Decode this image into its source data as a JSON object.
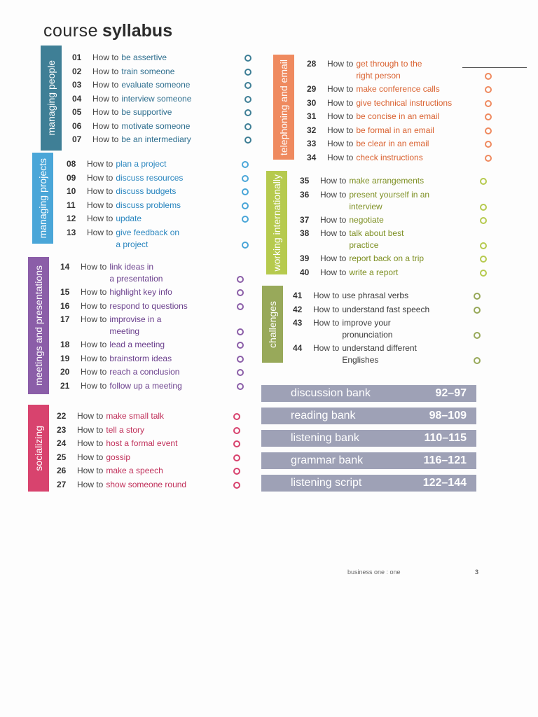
{
  "title": {
    "light": "course",
    "bold": "syllabus"
  },
  "sections": [
    {
      "label": "managing people",
      "color": "#3f7f96",
      "text_color": "#2f6f8f",
      "items": [
        {
          "number": "01",
          "prefix": "How to",
          "topic": [
            "be assertive"
          ]
        },
        {
          "number": "02",
          "prefix": "How to",
          "topic": [
            "train someone"
          ]
        },
        {
          "number": "03",
          "prefix": "How to",
          "topic": [
            "evaluate someone"
          ]
        },
        {
          "number": "04",
          "prefix": "How to",
          "topic": [
            "interview someone"
          ]
        },
        {
          "number": "05",
          "prefix": "How to",
          "topic": [
            "be supportive"
          ]
        },
        {
          "number": "06",
          "prefix": "How to",
          "topic": [
            "motivate someone"
          ]
        },
        {
          "number": "07",
          "prefix": "How to",
          "topic": [
            "be an intermediary"
          ]
        }
      ]
    },
    {
      "label": "managing projects",
      "color": "#4aa6d8",
      "text_color": "#2a86bf",
      "items": [
        {
          "number": "08",
          "prefix": "How to",
          "topic": [
            "plan a project"
          ]
        },
        {
          "number": "09",
          "prefix": "How to",
          "topic": [
            "discuss resources"
          ]
        },
        {
          "number": "10",
          "prefix": "How to",
          "topic": [
            "discuss budgets"
          ]
        },
        {
          "number": "11",
          "prefix": "How to",
          "topic": [
            "discuss problems"
          ]
        },
        {
          "number": "12",
          "prefix": "How to",
          "topic": [
            "update"
          ]
        },
        {
          "number": "13",
          "prefix": "How to",
          "topic": [
            "give feedback on",
            "a project"
          ]
        }
      ]
    },
    {
      "label": "meetings and presentations",
      "color": "#8b5ea8",
      "text_color": "#6a3f8c",
      "items": [
        {
          "number": "14",
          "prefix": "How to",
          "topic": [
            "link ideas in",
            "a presentation"
          ]
        },
        {
          "number": "15",
          "prefix": "How to",
          "topic": [
            "highlight key info"
          ]
        },
        {
          "number": "16",
          "prefix": "How to",
          "topic": [
            "respond to questions"
          ]
        },
        {
          "number": "17",
          "prefix": "How to",
          "topic": [
            "improvise in a",
            "meeting"
          ]
        },
        {
          "number": "18",
          "prefix": "How to",
          "topic": [
            "lead a meeting"
          ]
        },
        {
          "number": "19",
          "prefix": "How to",
          "topic": [
            "brainstorm ideas"
          ]
        },
        {
          "number": "20",
          "prefix": "How to",
          "topic": [
            "reach a conclusion"
          ]
        },
        {
          "number": "21",
          "prefix": "How to",
          "topic": [
            "follow up a meeting"
          ]
        }
      ]
    },
    {
      "label": "socializing",
      "color": "#d8436e",
      "text_color": "#c0305a",
      "items": [
        {
          "number": "22",
          "prefix": "How to",
          "topic": [
            "make small talk"
          ]
        },
        {
          "number": "23",
          "prefix": "How to",
          "topic": [
            "tell a story"
          ]
        },
        {
          "number": "24",
          "prefix": "How to",
          "topic": [
            "host a formal event"
          ]
        },
        {
          "number": "25",
          "prefix": "How to",
          "topic": [
            "gossip"
          ]
        },
        {
          "number": "26",
          "prefix": "How to",
          "topic": [
            "make a speech"
          ]
        },
        {
          "number": "27",
          "prefix": "How to",
          "topic": [
            "show someone round"
          ]
        }
      ]
    },
    {
      "label": "telephoning and email",
      "color": "#ef8a5f",
      "text_color": "#d9602e",
      "items": [
        {
          "number": "28",
          "prefix": "How to",
          "topic": [
            "get through to the",
            "right person"
          ]
        },
        {
          "number": "29",
          "prefix": "How to",
          "topic": [
            "make conference calls"
          ]
        },
        {
          "number": "30",
          "prefix": "How to",
          "topic": [
            "give technical instructions"
          ]
        },
        {
          "number": "31",
          "prefix": "How to",
          "topic": [
            "be concise in an email"
          ]
        },
        {
          "number": "32",
          "prefix": "How to",
          "topic": [
            "be formal in an email"
          ]
        },
        {
          "number": "33",
          "prefix": "How to",
          "topic": [
            "be clear in an email"
          ]
        },
        {
          "number": "34",
          "prefix": "How to",
          "topic": [
            "check instructions"
          ]
        }
      ]
    },
    {
      "label": "working internationally",
      "color": "#b6ca4e",
      "text_color": "#7d8f22",
      "items": [
        {
          "number": "35",
          "prefix": "How to",
          "topic": [
            "make arrangements"
          ]
        },
        {
          "number": "36",
          "prefix": "How to",
          "topic": [
            "present yourself in an",
            "interview"
          ]
        },
        {
          "number": "37",
          "prefix": "How to",
          "topic": [
            "negotiate"
          ]
        },
        {
          "number": "38",
          "prefix": "How to",
          "topic": [
            "talk about best",
            "practice"
          ]
        },
        {
          "number": "39",
          "prefix": "How to",
          "topic": [
            "report back on a trip"
          ]
        },
        {
          "number": "40",
          "prefix": "How to",
          "topic": [
            "write a report"
          ]
        }
      ]
    },
    {
      "label": "challenges",
      "color": "#98a95a",
      "text_color": "#3a3a3a",
      "items": [
        {
          "number": "41",
          "prefix": "How to",
          "topic": [
            "use phrasal verbs"
          ]
        },
        {
          "number": "42",
          "prefix": "How to",
          "topic": [
            "understand fast speech"
          ]
        },
        {
          "number": "43",
          "prefix": "How to",
          "topic": [
            "improve your",
            "pronunciation"
          ]
        },
        {
          "number": "44",
          "prefix": "How to",
          "topic": [
            "understand different",
            "Englishes"
          ]
        }
      ]
    }
  ],
  "banks": [
    {
      "name": "discussion bank",
      "pages": "92–97"
    },
    {
      "name": "reading bank",
      "pages": "98–109"
    },
    {
      "name": "listening bank",
      "pages": "110–115"
    },
    {
      "name": "grammar bank",
      "pages": "116–121"
    },
    {
      "name": "listening script",
      "pages": "122–144"
    }
  ],
  "bank_color": "#9ea1b6",
  "footer": {
    "book": "business one : one",
    "page": "3"
  }
}
